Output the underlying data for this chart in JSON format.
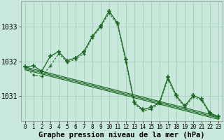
{
  "background_color": "#c8e8dc",
  "grid_color": "#a8ccbc",
  "line_color": "#1a6620",
  "hours": [
    0,
    1,
    2,
    3,
    4,
    5,
    6,
    7,
    8,
    9,
    10,
    11,
    12,
    13,
    14,
    15,
    16,
    17,
    18,
    19,
    20,
    21,
    22,
    23
  ],
  "series_solid": [
    1031.85,
    1031.87,
    1031.72,
    1032.15,
    1032.28,
    1032.02,
    1032.1,
    1032.28,
    1032.72,
    1033.02,
    1033.45,
    1033.1,
    1032.05,
    1030.82,
    1030.62,
    1030.68,
    1030.82,
    1031.55,
    1031.02,
    1030.72,
    1031.02,
    1030.92,
    1030.52,
    1030.42
  ],
  "series_dot": [
    1031.83,
    1031.62,
    1031.57,
    1031.87,
    1032.22,
    1031.98,
    1032.06,
    1032.22,
    1032.68,
    1032.98,
    1033.38,
    1033.06,
    1031.97,
    1030.78,
    1030.58,
    1030.63,
    1030.78,
    1031.48,
    1030.98,
    1030.68,
    1030.98,
    1030.88,
    1030.48,
    1030.38
  ],
  "trend_lines": [
    [
      1031.84,
      1030.42
    ],
    [
      1031.8,
      1030.38
    ],
    [
      1031.76,
      1030.34
    ]
  ],
  "ylim": [
    1030.28,
    1033.72
  ],
  "yticks": [
    1031,
    1032,
    1033
  ],
  "xticks": [
    0,
    1,
    2,
    3,
    4,
    5,
    6,
    7,
    8,
    9,
    10,
    11,
    12,
    13,
    14,
    15,
    16,
    17,
    18,
    19,
    20,
    21,
    22,
    23
  ],
  "xlabel": "Graphe pression niveau de la mer (hPa)",
  "tick_fontsize": 6,
  "label_fontsize": 7.5
}
